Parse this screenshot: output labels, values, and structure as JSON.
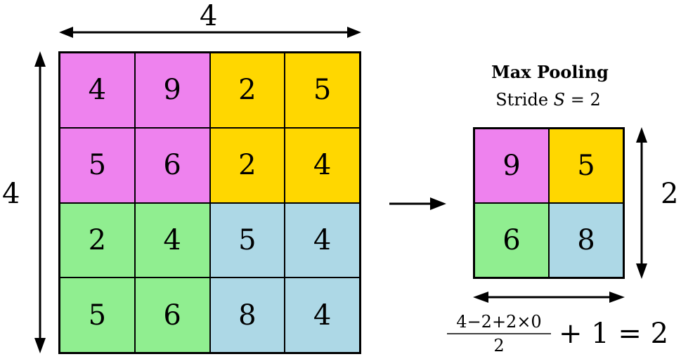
{
  "colors": {
    "magenta": "#EE82EE",
    "gold": "#FFD700",
    "green": "#90EE90",
    "lightblue": "#ADD8E6",
    "line": "#000000"
  },
  "input": {
    "width_label": "4",
    "height_label": "4",
    "rows": [
      [
        {
          "v": "4",
          "c": "magenta"
        },
        {
          "v": "9",
          "c": "magenta"
        },
        {
          "v": "2",
          "c": "gold"
        },
        {
          "v": "5",
          "c": "gold"
        }
      ],
      [
        {
          "v": "5",
          "c": "magenta"
        },
        {
          "v": "6",
          "c": "magenta"
        },
        {
          "v": "2",
          "c": "gold"
        },
        {
          "v": "4",
          "c": "gold"
        }
      ],
      [
        {
          "v": "2",
          "c": "green"
        },
        {
          "v": "4",
          "c": "green"
        },
        {
          "v": "5",
          "c": "lightblue"
        },
        {
          "v": "4",
          "c": "lightblue"
        }
      ],
      [
        {
          "v": "5",
          "c": "green"
        },
        {
          "v": "6",
          "c": "green"
        },
        {
          "v": "8",
          "c": "lightblue"
        },
        {
          "v": "4",
          "c": "lightblue"
        }
      ]
    ]
  },
  "operation": {
    "title": "Max Pooling",
    "stride_prefix": "Stride ",
    "stride_var": "S",
    "stride_suffix": " = 2"
  },
  "output": {
    "height_label": "2",
    "rows": [
      [
        {
          "v": "9",
          "c": "magenta"
        },
        {
          "v": "5",
          "c": "gold"
        }
      ],
      [
        {
          "v": "6",
          "c": "green"
        },
        {
          "v": "8",
          "c": "lightblue"
        }
      ]
    ]
  },
  "formula": {
    "numerator": "4−2+2×0",
    "denominator": "2",
    "rest": "+ 1 = 2"
  }
}
